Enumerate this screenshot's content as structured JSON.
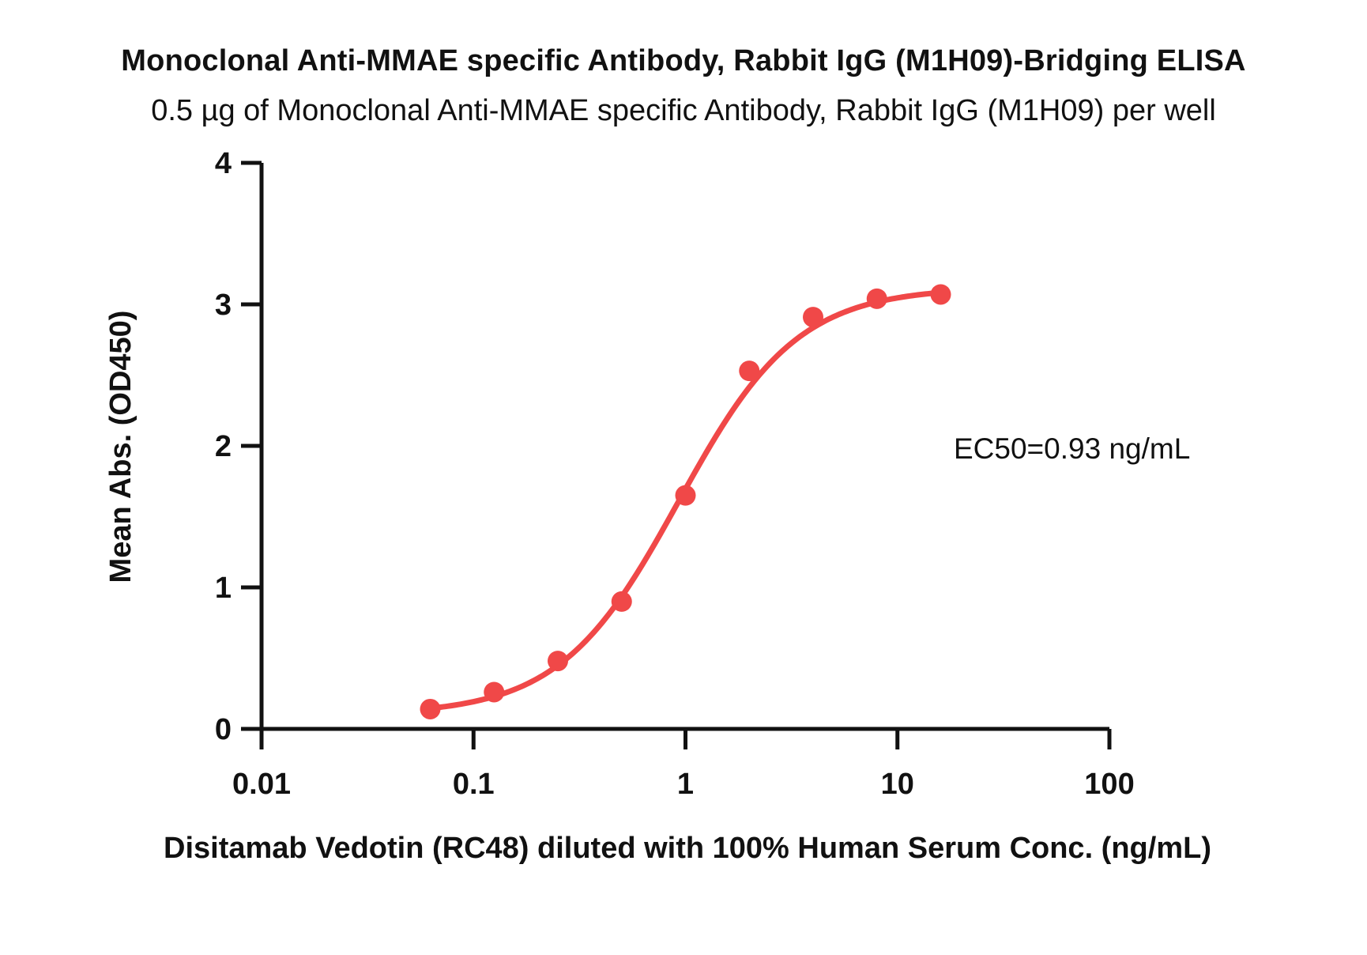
{
  "chart_data": {
    "type": "scatter",
    "title": "Monoclonal Anti-MMAE specific Antibody, Rabbit IgG (M1H09)-Bridging ELISA",
    "subtitle": "0.5 µg of Monoclonal Anti-MMAE specific Antibody, Rabbit IgG (M1H09) per well",
    "xlabel": "Disitamab Vedotin (RC48) diluted with 100% Human Serum Conc. (ng/mL)",
    "ylabel": "Mean Abs. (OD450)",
    "x_scale": "log",
    "xlim": [
      0.01,
      100
    ],
    "ylim": [
      0,
      4
    ],
    "x_ticks": [
      "0.01",
      "0.1",
      "1",
      "10",
      "100"
    ],
    "y_ticks": [
      "0",
      "1",
      "2",
      "3",
      "4"
    ],
    "grid": false,
    "series": [
      {
        "color": "#f04848",
        "x": [
          0.0625,
          0.125,
          0.25,
          0.5,
          1,
          2,
          4,
          8,
          16
        ],
        "y": [
          0.14,
          0.26,
          0.48,
          0.9,
          1.65,
          2.53,
          2.91,
          3.04,
          3.07
        ]
      }
    ],
    "fit": {
      "type": "4PL",
      "bottom": 0.1,
      "top": 3.12,
      "ec50": 0.93,
      "hill": 1.55
    },
    "annotations": [
      "EC50=0.93 ng/mL"
    ]
  }
}
